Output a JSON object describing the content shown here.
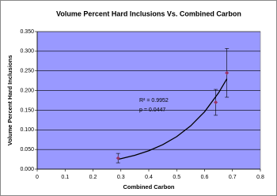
{
  "chart_data": {
    "type": "scatter",
    "title": "Volume Percent Hard Inclusions Vs. Combined Carbon",
    "x_label": "Combined Carbon",
    "y_label": "Volume Percent Hard Inclusions",
    "xlim": [
      0,
      0.8
    ],
    "xticks": [
      0,
      0.1,
      0.2,
      0.3,
      0.4,
      0.5,
      0.6,
      0.7,
      0.8
    ],
    "ylim": [
      0,
      0.35
    ],
    "yticks": [
      {
        "value": 0,
        "label": "0.000"
      },
      {
        "value": 0.05,
        "label": "0.050"
      },
      {
        "value": 0.1,
        "label": "0.100"
      },
      {
        "value": 0.15,
        "label": "0.150"
      },
      {
        "value": 0.2,
        "label": "0.200"
      },
      {
        "value": 0.25,
        "label": "0.250"
      },
      {
        "value": 0.3,
        "label": "0.300"
      },
      {
        "value": 0.35,
        "label": "0.350"
      }
    ],
    "grid": true,
    "background": "#9999ff",
    "series": [
      {
        "x": [
          0.29,
          0.64,
          0.68
        ],
        "values": [
          0.028,
          0.17,
          0.245
        ],
        "errors": [
          0.012,
          0.033,
          0.062
        ],
        "color": "#993366"
      }
    ],
    "trendline": {
      "x": [
        0.29,
        0.35,
        0.4,
        0.45,
        0.5,
        0.55,
        0.6,
        0.65,
        0.68
      ],
      "values": [
        0.025,
        0.0352,
        0.0468,
        0.0622,
        0.0827,
        0.11,
        0.146,
        0.194,
        0.23
      ],
      "color": "#000000"
    },
    "annotations": [
      "R² = 0.9952",
      "p = 0.0447"
    ]
  }
}
